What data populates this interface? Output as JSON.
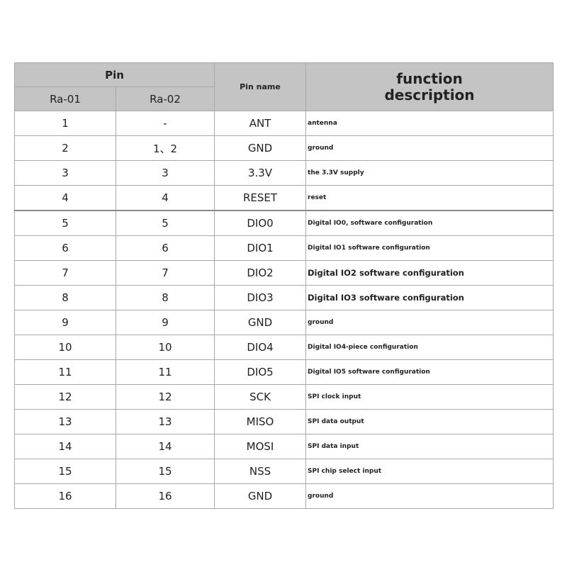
{
  "header": {
    "pin": "Pin",
    "ra01": "Ra-01",
    "ra02": "Ra-02",
    "pin_name": "Pin name",
    "function_line1": "function",
    "function_line2": "description"
  },
  "rows": [
    {
      "ra01": "1",
      "ra02": "-",
      "name": "ANT",
      "desc": "antenna"
    },
    {
      "ra01": "2",
      "ra02": "1、2",
      "name": "GND",
      "desc": "ground"
    },
    {
      "ra01": "3",
      "ra02": "3",
      "name": "3.3V",
      "desc": " the 3.3V supply"
    },
    {
      "ra01": "4",
      "ra02": "4",
      "name": "RESET",
      "desc": "reset"
    },
    {
      "ra01": "5",
      "ra02": "5",
      "name": "DIO0",
      "desc": "Digital IO0, software configuration"
    },
    {
      "ra01": "6",
      "ra02": "6",
      "name": "DIO1",
      "desc": "Digital IO1 software configuration"
    },
    {
      "ra01": "7",
      "ra02": "7",
      "name": "DIO2",
      "desc": "Digital IO2 software configuration"
    },
    {
      "ra01": "8",
      "ra02": "8",
      "name": "DIO3",
      "desc": "Digital IO3 software configuration"
    },
    {
      "ra01": "9",
      "ra02": "9",
      "name": "GND",
      "desc": "ground"
    },
    {
      "ra01": "10",
      "ra02": "10",
      "name": "DIO4",
      "desc": "Digital IO4-piece configuration"
    },
    {
      "ra01": "11",
      "ra02": "11",
      "name": "DIO5",
      "desc": "Digital IO5 software configuration"
    },
    {
      "ra01": "12",
      "ra02": "12",
      "name": "SCK",
      "desc": "SPI clock input"
    },
    {
      "ra01": "13",
      "ra02": "13",
      "name": "MISO",
      "desc": "SPI data output"
    },
    {
      "ra01": "14",
      "ra02": "14",
      "name": "MOSI",
      "desc": "SPI data input"
    },
    {
      "ra01": "15",
      "ra02": "15",
      "name": "NSS",
      "desc": "SPI chip select input"
    },
    {
      "ra01": "16",
      "ra02": "16",
      "name": "GND",
      "desc": "ground"
    }
  ]
}
